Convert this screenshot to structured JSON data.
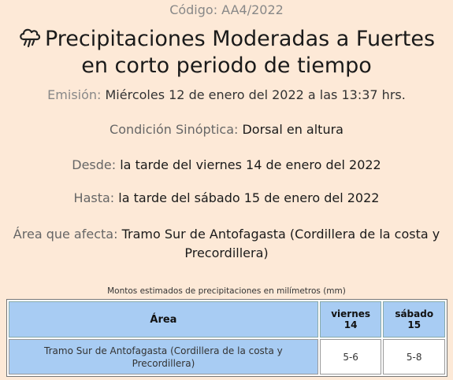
{
  "header": {
    "code_label": "Código: ",
    "code_value": "AA4/2022",
    "title_line1": "Precipitaciones Moderadas a Fuertes",
    "title_line2": "en corto periodo de tiempo",
    "icon": "rain-cloud-icon"
  },
  "emision": {
    "label": "Emisión: ",
    "value": "Miércoles 12 de enero del 2022 a las 13:37 hrs."
  },
  "details": {
    "condicion_label": "Condición Sinóptica: ",
    "condicion_value": "Dorsal en altura",
    "desde_label": "Desde: ",
    "desde_value": "la tarde del viernes 14 de enero del 2022",
    "hasta_label": "Hasta: ",
    "hasta_value": "la tarde del sábado 15 de enero del 2022",
    "area_label": "Área que afecta: ",
    "area_value_line1": "Tramo Sur de Antofagasta (Cordillera de la costa y",
    "area_value_line2": "Precordillera)"
  },
  "table": {
    "caption": "Montos estimados de precipitaciones en milímetros (mm)",
    "headers": [
      "Área",
      "viernes 14",
      "sábado 15"
    ],
    "header_day1_line1": "viernes",
    "header_day1_line2": "14",
    "header_day2_line1": "sábado",
    "header_day2_line2": "15",
    "rows": [
      {
        "area_line1": "Tramo Sur de Antofagasta (Cordillera de la costa y",
        "area_line2": "Precordillera)",
        "day1": "5-6",
        "day2": "5-8"
      }
    ]
  },
  "colors": {
    "background": "#fde9d7",
    "table_header": "#a8ccf3"
  }
}
